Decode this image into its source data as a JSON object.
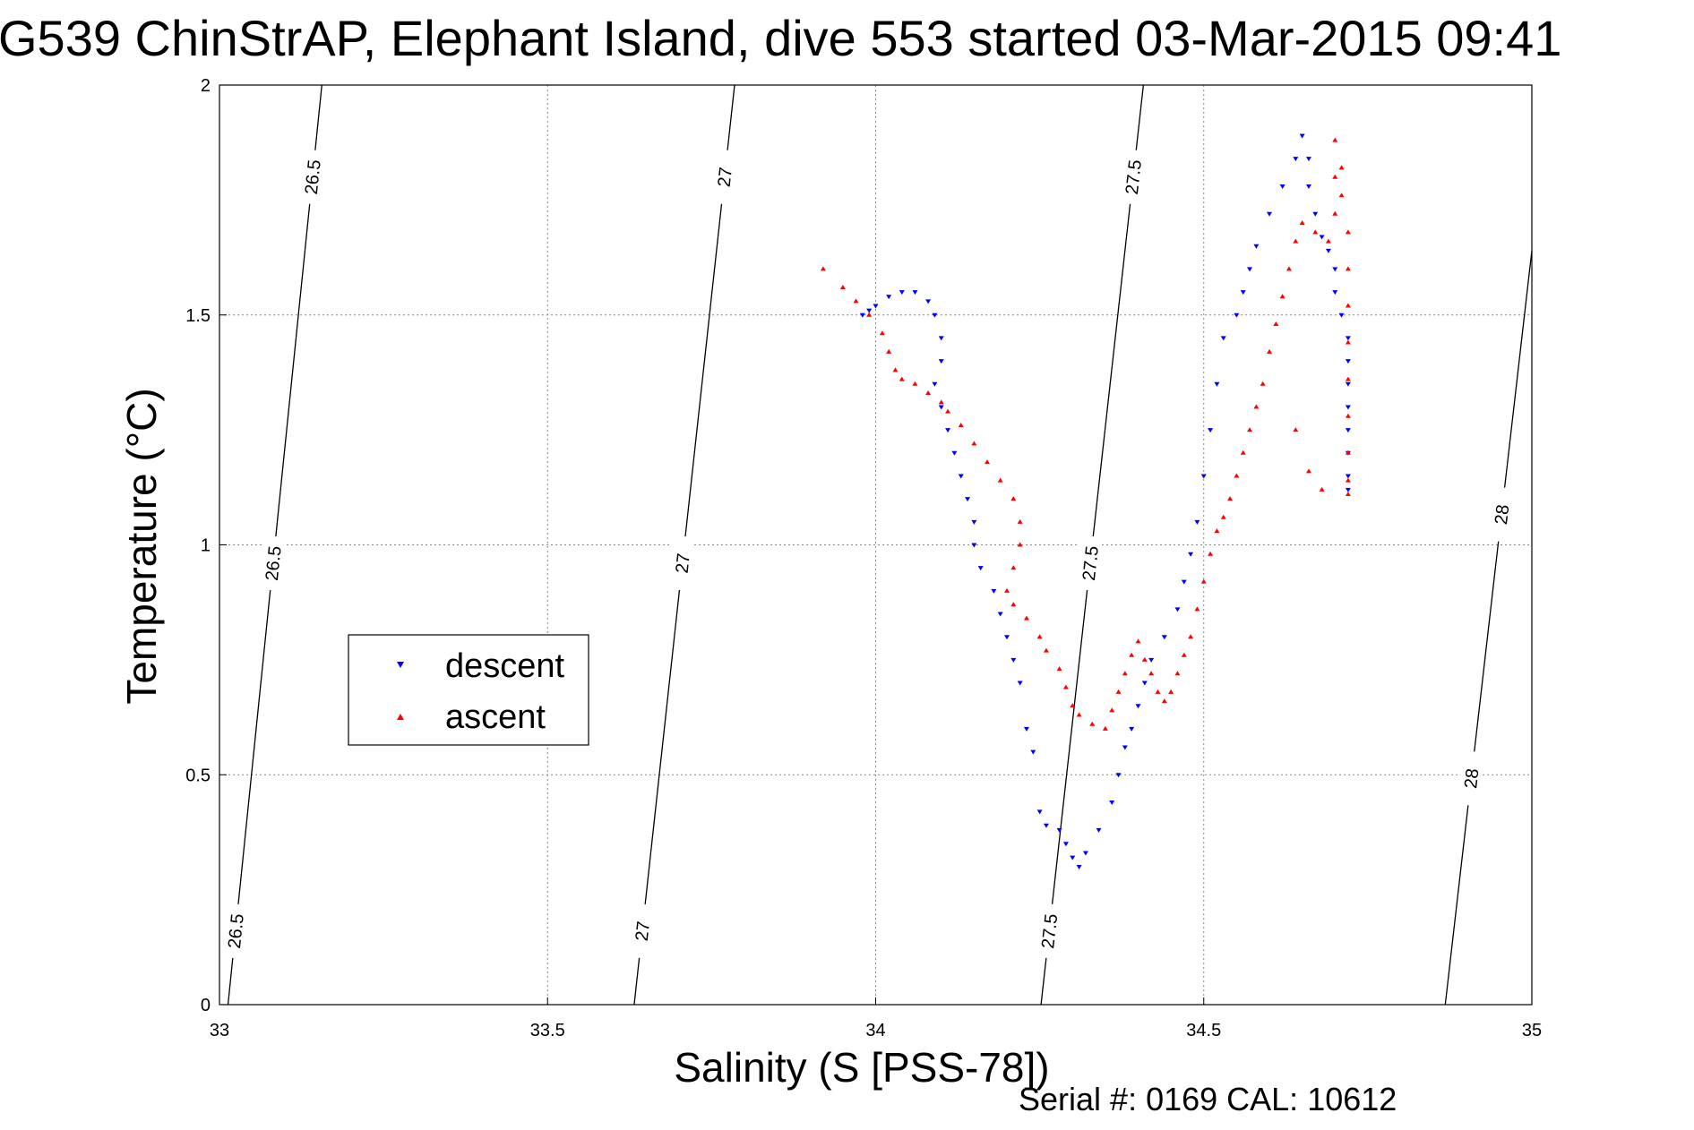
{
  "chart_data": {
    "type": "scatter",
    "title": "G539 ChinStrAP, Elephant Island, dive 553 started 03-Mar-2015 09:41",
    "xlabel": "Salinity (S [PSS-78])",
    "ylabel": "Temperature (°C)",
    "xlim": [
      33,
      35
    ],
    "ylim": [
      0,
      2
    ],
    "x_ticks": [
      "33",
      "33.5",
      "34",
      "34.5",
      "35"
    ],
    "y_ticks": [
      "0",
      "0.5",
      "1",
      "1.5",
      "2"
    ],
    "grid": true,
    "grid_style": "dotted",
    "legend": {
      "position": "center-left",
      "entries": [
        "descent",
        "ascent"
      ]
    },
    "footer": "Serial #: 0169 CAL: 10612",
    "density_contours": [
      {
        "label": "26.5",
        "points": [
          [
            33.013,
            0
          ],
          [
            33.156,
            2
          ]
        ]
      },
      {
        "label": "27",
        "points": [
          [
            33.632,
            0
          ],
          [
            33.785,
            2
          ]
        ]
      },
      {
        "label": "27.5",
        "points": [
          [
            34.252,
            0
          ],
          [
            34.408,
            2
          ]
        ]
      },
      {
        "label": "28",
        "points": [
          [
            34.868,
            0
          ],
          [
            35.0,
            1.64
          ]
        ]
      }
    ],
    "series": [
      {
        "name": "descent",
        "color": "#0000ff",
        "marker": "triangle-down",
        "points": [
          [
            33.98,
            1.5
          ],
          [
            33.99,
            1.51
          ],
          [
            34.0,
            1.52
          ],
          [
            34.02,
            1.54
          ],
          [
            34.04,
            1.55
          ],
          [
            34.06,
            1.55
          ],
          [
            34.08,
            1.53
          ],
          [
            34.09,
            1.5
          ],
          [
            34.1,
            1.45
          ],
          [
            34.1,
            1.4
          ],
          [
            34.09,
            1.35
          ],
          [
            34.1,
            1.3
          ],
          [
            34.11,
            1.25
          ],
          [
            34.12,
            1.2
          ],
          [
            34.13,
            1.15
          ],
          [
            34.14,
            1.1
          ],
          [
            34.15,
            1.05
          ],
          [
            34.15,
            1.0
          ],
          [
            34.16,
            0.95
          ],
          [
            34.18,
            0.9
          ],
          [
            34.19,
            0.85
          ],
          [
            34.2,
            0.8
          ],
          [
            34.21,
            0.75
          ],
          [
            34.22,
            0.7
          ],
          [
            34.23,
            0.6
          ],
          [
            34.24,
            0.55
          ],
          [
            34.25,
            0.42
          ],
          [
            34.26,
            0.39
          ],
          [
            34.28,
            0.38
          ],
          [
            34.29,
            0.35
          ],
          [
            34.3,
            0.32
          ],
          [
            34.31,
            0.3
          ],
          [
            34.32,
            0.33
          ],
          [
            34.34,
            0.38
          ],
          [
            34.36,
            0.44
          ],
          [
            34.37,
            0.5
          ],
          [
            34.38,
            0.56
          ],
          [
            34.39,
            0.6
          ],
          [
            34.4,
            0.65
          ],
          [
            34.41,
            0.7
          ],
          [
            34.42,
            0.75
          ],
          [
            34.44,
            0.8
          ],
          [
            34.46,
            0.86
          ],
          [
            34.47,
            0.92
          ],
          [
            34.48,
            0.98
          ],
          [
            34.49,
            1.05
          ],
          [
            34.5,
            1.15
          ],
          [
            34.51,
            1.25
          ],
          [
            34.52,
            1.35
          ],
          [
            34.53,
            1.45
          ],
          [
            34.55,
            1.5
          ],
          [
            34.56,
            1.55
          ],
          [
            34.57,
            1.6
          ],
          [
            34.58,
            1.65
          ],
          [
            34.6,
            1.72
          ],
          [
            34.62,
            1.78
          ],
          [
            34.64,
            1.84
          ],
          [
            34.65,
            1.89
          ],
          [
            34.66,
            1.84
          ],
          [
            34.66,
            1.78
          ],
          [
            34.67,
            1.72
          ],
          [
            34.68,
            1.67
          ],
          [
            34.69,
            1.64
          ],
          [
            34.7,
            1.6
          ],
          [
            34.7,
            1.55
          ],
          [
            34.71,
            1.5
          ],
          [
            34.72,
            1.45
          ],
          [
            34.72,
            1.4
          ],
          [
            34.72,
            1.35
          ],
          [
            34.72,
            1.3
          ],
          [
            34.72,
            1.25
          ],
          [
            34.72,
            1.2
          ],
          [
            34.72,
            1.15
          ],
          [
            34.72,
            1.12
          ]
        ]
      },
      {
        "name": "ascent",
        "color": "#ff0000",
        "marker": "triangle-up",
        "points": [
          [
            33.92,
            1.6
          ],
          [
            33.95,
            1.56
          ],
          [
            33.97,
            1.53
          ],
          [
            33.99,
            1.5
          ],
          [
            34.01,
            1.46
          ],
          [
            34.02,
            1.42
          ],
          [
            34.03,
            1.38
          ],
          [
            34.04,
            1.36
          ],
          [
            34.06,
            1.35
          ],
          [
            34.08,
            1.33
          ],
          [
            34.1,
            1.31
          ],
          [
            34.11,
            1.29
          ],
          [
            34.13,
            1.26
          ],
          [
            34.15,
            1.22
          ],
          [
            34.17,
            1.18
          ],
          [
            34.19,
            1.14
          ],
          [
            34.21,
            1.1
          ],
          [
            34.22,
            1.05
          ],
          [
            34.22,
            1.0
          ],
          [
            34.21,
            0.95
          ],
          [
            34.2,
            0.9
          ],
          [
            34.21,
            0.87
          ],
          [
            34.23,
            0.84
          ],
          [
            34.25,
            0.8
          ],
          [
            34.26,
            0.77
          ],
          [
            34.28,
            0.73
          ],
          [
            34.29,
            0.69
          ],
          [
            34.3,
            0.65
          ],
          [
            34.31,
            0.63
          ],
          [
            34.33,
            0.61
          ],
          [
            34.35,
            0.6
          ],
          [
            34.36,
            0.64
          ],
          [
            34.37,
            0.68
          ],
          [
            34.38,
            0.72
          ],
          [
            34.39,
            0.76
          ],
          [
            34.4,
            0.79
          ],
          [
            34.41,
            0.75
          ],
          [
            34.42,
            0.72
          ],
          [
            34.43,
            0.68
          ],
          [
            34.44,
            0.66
          ],
          [
            34.45,
            0.68
          ],
          [
            34.46,
            0.72
          ],
          [
            34.47,
            0.76
          ],
          [
            34.48,
            0.8
          ],
          [
            34.49,
            0.86
          ],
          [
            34.5,
            0.92
          ],
          [
            34.51,
            0.98
          ],
          [
            34.52,
            1.03
          ],
          [
            34.53,
            1.06
          ],
          [
            34.54,
            1.1
          ],
          [
            34.55,
            1.15
          ],
          [
            34.56,
            1.2
          ],
          [
            34.57,
            1.25
          ],
          [
            34.58,
            1.3
          ],
          [
            34.59,
            1.35
          ],
          [
            34.6,
            1.42
          ],
          [
            34.61,
            1.48
          ],
          [
            34.62,
            1.54
          ],
          [
            34.63,
            1.6
          ],
          [
            34.64,
            1.66
          ],
          [
            34.65,
            1.7
          ],
          [
            34.67,
            1.68
          ],
          [
            34.69,
            1.66
          ],
          [
            34.7,
            1.72
          ],
          [
            34.7,
            1.8
          ],
          [
            34.7,
            1.88
          ],
          [
            34.71,
            1.82
          ],
          [
            34.71,
            1.76
          ],
          [
            34.72,
            1.68
          ],
          [
            34.72,
            1.6
          ],
          [
            34.72,
            1.52
          ],
          [
            34.72,
            1.44
          ],
          [
            34.72,
            1.36
          ],
          [
            34.72,
            1.28
          ],
          [
            34.72,
            1.2
          ],
          [
            34.72,
            1.14
          ],
          [
            34.72,
            1.11
          ],
          [
            34.68,
            1.12
          ],
          [
            34.66,
            1.16
          ],
          [
            34.64,
            1.25
          ]
        ]
      }
    ]
  }
}
